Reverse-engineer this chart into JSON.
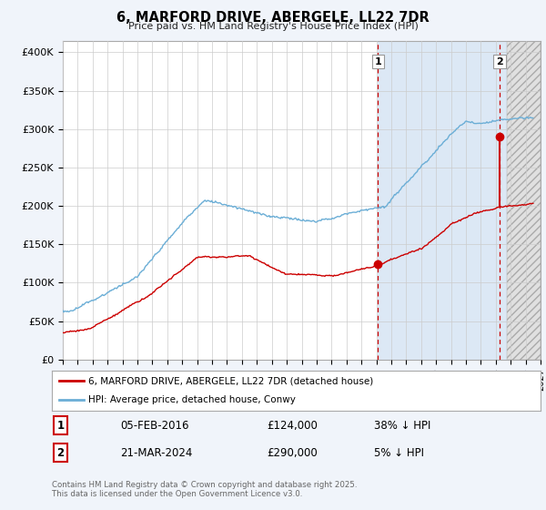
{
  "title": "6, MARFORD DRIVE, ABERGELE, LL22 7DR",
  "subtitle": "Price paid vs. HM Land Registry's House Price Index (HPI)",
  "ylabel_ticks": [
    "£0",
    "£50K",
    "£100K",
    "£150K",
    "£200K",
    "£250K",
    "£300K",
    "£350K",
    "£400K"
  ],
  "ytick_values": [
    0,
    50000,
    100000,
    150000,
    200000,
    250000,
    300000,
    350000,
    400000
  ],
  "ylim": [
    0,
    415000
  ],
  "xlim_start": 1995,
  "xlim_end": 2027,
  "hpi_color": "#6baed6",
  "price_color": "#cc0000",
  "marker1_x": 2016.1,
  "marker2_x": 2024.25,
  "marker1_price": 124000,
  "marker2_price": 290000,
  "shade_start": 2016.1,
  "hatch_start": 2024.75,
  "legend_entry1": "6, MARFORD DRIVE, ABERGELE, LL22 7DR (detached house)",
  "legend_entry2": "HPI: Average price, detached house, Conwy",
  "table_row1": [
    "1",
    "05-FEB-2016",
    "£124,000",
    "38% ↓ HPI"
  ],
  "table_row2": [
    "2",
    "21-MAR-2024",
    "£290,000",
    "5% ↓ HPI"
  ],
  "footer": "Contains HM Land Registry data © Crown copyright and database right 2025.\nThis data is licensed under the Open Government Licence v3.0.",
  "bg_color": "#f0f4fa",
  "plot_bg_color": "#ffffff",
  "shade_color": "#dce8f5"
}
